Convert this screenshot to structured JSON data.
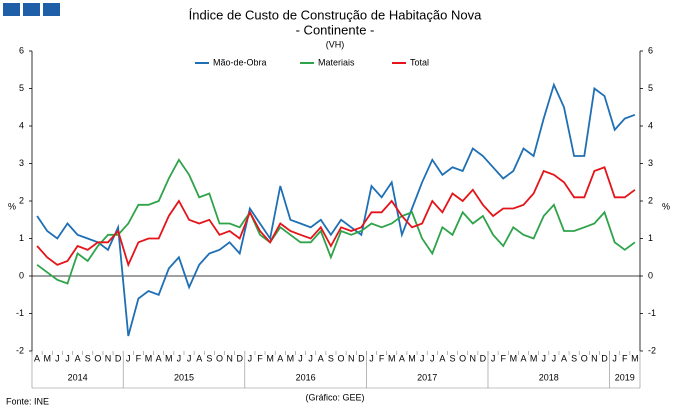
{
  "chart_data": {
    "type": "line",
    "title": "Índice de Custo de Construção de Habitação Nova",
    "subtitle": "- Continente -",
    "unit_note": "(VH)",
    "y_label": "%",
    "y2_label": "%",
    "categories": [
      "A",
      "M",
      "J",
      "J",
      "A",
      "S",
      "O",
      "N",
      "D",
      "J",
      "F",
      "M",
      "A",
      "M",
      "J",
      "J",
      "A",
      "S",
      "O",
      "N",
      "D",
      "J",
      "F",
      "M",
      "A",
      "M",
      "J",
      "J",
      "A",
      "S",
      "O",
      "N",
      "D",
      "J",
      "F",
      "M",
      "A",
      "M",
      "J",
      "J",
      "A",
      "S",
      "O",
      "N",
      "D",
      "J",
      "F",
      "M",
      "A",
      "M",
      "J",
      "J",
      "A",
      "S",
      "O",
      "N",
      "D",
      "J",
      "F",
      "M"
    ],
    "year_groups": [
      {
        "label": "2014",
        "months": 9
      },
      {
        "label": "2015",
        "months": 12
      },
      {
        "label": "2016",
        "months": 12
      },
      {
        "label": "2017",
        "months": 12
      },
      {
        "label": "2018",
        "months": 12
      },
      {
        "label": "2019",
        "months": 3
      }
    ],
    "series": [
      {
        "name": "Mão-de-Obra",
        "color": "#1f6fb4",
        "values": [
          1.6,
          1.2,
          1.0,
          1.4,
          1.1,
          1.0,
          0.9,
          0.7,
          1.3,
          -1.6,
          -0.6,
          -0.4,
          -0.5,
          0.2,
          0.5,
          -0.3,
          0.3,
          0.6,
          0.7,
          0.9,
          0.6,
          1.8,
          1.4,
          1.0,
          2.4,
          1.5,
          1.4,
          1.3,
          1.5,
          1.1,
          1.5,
          1.3,
          1.1,
          2.4,
          2.1,
          2.5,
          1.1,
          1.8,
          2.5,
          3.1,
          2.7,
          2.9,
          2.8,
          3.4,
          3.2,
          2.9,
          2.6,
          2.8,
          3.4,
          3.2,
          4.2,
          5.1,
          4.5,
          3.2,
          3.2,
          5.0,
          4.8,
          3.9,
          4.2,
          4.3
        ]
      },
      {
        "name": "Materiais",
        "color": "#2ea34a",
        "values": [
          0.3,
          0.1,
          -0.1,
          -0.2,
          0.6,
          0.4,
          0.8,
          1.1,
          1.1,
          1.4,
          1.9,
          1.9,
          2.0,
          2.6,
          3.1,
          2.7,
          2.1,
          2.2,
          1.4,
          1.4,
          1.3,
          1.7,
          1.1,
          0.9,
          1.3,
          1.1,
          0.9,
          0.9,
          1.2,
          0.5,
          1.2,
          1.1,
          1.2,
          1.4,
          1.3,
          1.4,
          1.6,
          1.7,
          1.0,
          0.6,
          1.3,
          1.1,
          1.7,
          1.4,
          1.6,
          1.1,
          0.8,
          1.3,
          1.1,
          1.0,
          1.6,
          1.9,
          1.2,
          1.2,
          1.3,
          1.4,
          1.7,
          0.9,
          0.7,
          0.9
        ]
      },
      {
        "name": "Total",
        "color": "#e3151a",
        "values": [
          0.8,
          0.5,
          0.3,
          0.4,
          0.8,
          0.7,
          0.9,
          0.9,
          1.2,
          0.3,
          0.9,
          1.0,
          1.0,
          1.6,
          2.0,
          1.5,
          1.4,
          1.5,
          1.1,
          1.2,
          1.0,
          1.7,
          1.2,
          0.9,
          1.4,
          1.2,
          1.1,
          1.0,
          1.3,
          0.8,
          1.3,
          1.2,
          1.3,
          1.7,
          1.7,
          2.0,
          1.6,
          1.3,
          1.4,
          2.0,
          1.7,
          2.2,
          2.0,
          2.3,
          1.9,
          1.6,
          1.8,
          1.8,
          1.9,
          2.2,
          2.8,
          2.7,
          2.5,
          2.1,
          2.1,
          2.8,
          2.9,
          2.1,
          2.1,
          2.3
        ]
      }
    ],
    "ylim": [
      -2,
      6
    ],
    "yticks": [
      -2,
      -1,
      0,
      1,
      2,
      3,
      4,
      5,
      6
    ],
    "y2lim": [
      -2,
      6
    ],
    "y2ticks": [
      -2,
      -1,
      0,
      1,
      2,
      3,
      4,
      5,
      6
    ],
    "legend": "top",
    "source": "Fonte: INE",
    "credit": "(Gráfico: GEE)"
  }
}
